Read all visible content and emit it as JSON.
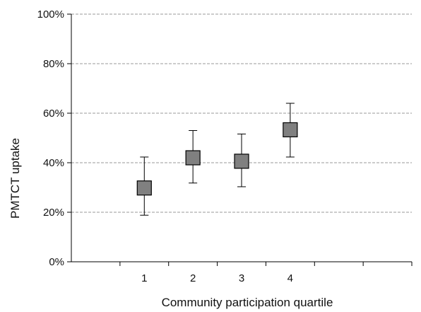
{
  "chart_data": {
    "type": "scatter",
    "xlabel": "Community participation quartile",
    "ylabel": "PMTCT uptake",
    "x_categories": [
      "1",
      "2",
      "3",
      "4"
    ],
    "x_ticks_extra": 2,
    "ylim": [
      0,
      100
    ],
    "y_ticks": [
      {
        "value": 0,
        "label": "0%"
      },
      {
        "value": 20,
        "label": "20%"
      },
      {
        "value": 40,
        "label": "40%"
      },
      {
        "value": 60,
        "label": "60%"
      },
      {
        "value": 80,
        "label": "80%"
      },
      {
        "value": 100,
        "label": "100%"
      }
    ],
    "grid": "horizontal dashed",
    "points": [
      {
        "x": "1",
        "y": 29.8,
        "lower": 18.8,
        "upper": 42.3
      },
      {
        "x": "2",
        "y": 42.0,
        "lower": 31.8,
        "upper": 53.0
      },
      {
        "x": "3",
        "y": 40.6,
        "lower": 30.3,
        "upper": 51.6
      },
      {
        "x": "4",
        "y": 53.3,
        "lower": 42.3,
        "upper": 64.0
      }
    ],
    "marker": {
      "shape": "square",
      "fill": "#808080",
      "stroke": "#000000"
    },
    "colors": {
      "grid": "#9a9a9a",
      "axis": "#000000",
      "error_bar": "#000000"
    }
  }
}
